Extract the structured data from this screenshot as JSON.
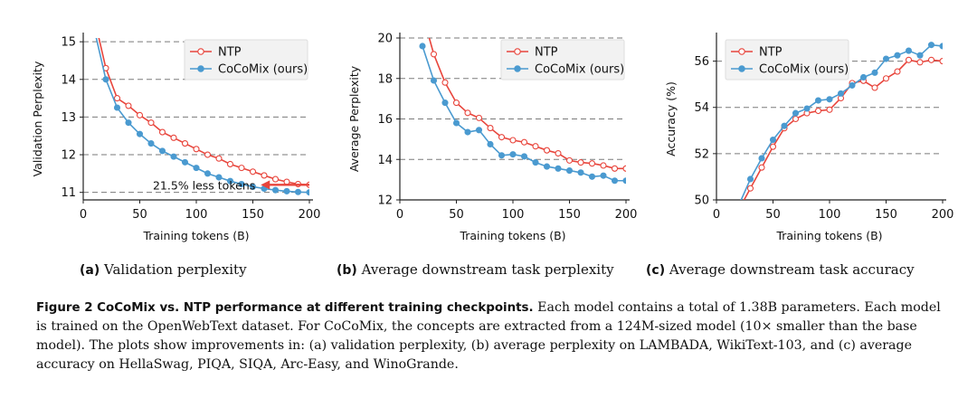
{
  "figure": {
    "sub_captions": [
      {
        "tag": "(a)",
        "text": "Validation perplexity"
      },
      {
        "tag": "(b)",
        "text": "Average downstream task perplexity"
      },
      {
        "tag": "(c)",
        "text": "Average downstream task accuracy"
      }
    ],
    "caption_lead": "Figure 2  CoCoMix vs. NTP performance at different training checkpoints.",
    "caption_body": "Each model contains a total of 1.38B parameters. Each model is trained on the OpenWebText dataset. For CoCoMix, the concepts are extracted from a 124M-sized model (10× smaller than the base model). The plots show improvements in: (a) validation perplexity, (b) average perplexity on LAMBADA, WikiText-103, and (c) average accuracy on HellaSwag, PIQA, SIQA, Arc-Easy, and WinoGrande."
  },
  "colors": {
    "ntp": "#e8453c",
    "cocomix": "#4a9ad0",
    "grid": "#7a7a7a",
    "annotation": "#e8453c"
  },
  "chart_data": [
    {
      "type": "line",
      "xlabel": "Training tokens (B)",
      "ylabel": "Validation Perplexity",
      "xlim": [
        0,
        200
      ],
      "ylim": [
        10.8,
        15.1
      ],
      "xticks": [
        0,
        50,
        100,
        150,
        200
      ],
      "yticks": [
        11,
        12,
        13,
        14,
        15
      ],
      "grid": "horizontal dashed",
      "legend": "top-right",
      "annotation": {
        "text": "21.5% less tokens",
        "arrow_from_x": 200,
        "arrow_to_x": 157,
        "y": 11.2
      },
      "series": [
        {
          "name": "NTP",
          "marker": "open-circle",
          "x": [
            10,
            20,
            30,
            40,
            50,
            60,
            70,
            80,
            90,
            100,
            110,
            120,
            130,
            140,
            150,
            160,
            170,
            180,
            190,
            200
          ],
          "y": [
            15.6,
            14.3,
            13.5,
            13.3,
            13.05,
            12.85,
            12.6,
            12.45,
            12.3,
            12.15,
            12.0,
            11.9,
            11.75,
            11.65,
            11.55,
            11.45,
            11.35,
            11.28,
            11.22,
            11.2
          ]
        },
        {
          "name": "CoCoMix (ours)",
          "marker": "filled-circle",
          "x": [
            10,
            20,
            30,
            40,
            50,
            60,
            70,
            80,
            90,
            100,
            110,
            120,
            130,
            140,
            150,
            160,
            170,
            180,
            190,
            200
          ],
          "y": [
            15.3,
            14.0,
            13.25,
            12.85,
            12.55,
            12.3,
            12.1,
            11.95,
            11.8,
            11.65,
            11.5,
            11.4,
            11.3,
            11.22,
            11.15,
            11.1,
            11.06,
            11.03,
            11.01,
            11.0
          ]
        }
      ]
    },
    {
      "type": "line",
      "xlabel": "Training tokens (B)",
      "ylabel": "Average Perplexity",
      "xlim": [
        0,
        200
      ],
      "ylim": [
        12,
        20
      ],
      "xticks": [
        0,
        50,
        100,
        150,
        200
      ],
      "yticks": [
        12,
        14,
        16,
        18,
        20
      ],
      "grid": "horizontal dashed",
      "legend": "top-right",
      "series": [
        {
          "name": "NTP",
          "marker": "open-circle",
          "x": [
            20,
            30,
            40,
            50,
            60,
            70,
            80,
            90,
            100,
            110,
            120,
            130,
            140,
            150,
            160,
            170,
            180,
            190,
            200
          ],
          "y": [
            21.2,
            19.2,
            17.8,
            16.8,
            16.3,
            16.05,
            15.55,
            15.1,
            14.95,
            14.85,
            14.65,
            14.45,
            14.3,
            13.95,
            13.85,
            13.8,
            13.7,
            13.55,
            13.55
          ]
        },
        {
          "name": "CoCoMix (ours)",
          "marker": "filled-circle",
          "x": [
            20,
            30,
            40,
            50,
            60,
            70,
            80,
            90,
            100,
            110,
            120,
            130,
            140,
            150,
            160,
            170,
            180,
            190,
            200
          ],
          "y": [
            19.6,
            17.9,
            16.8,
            15.8,
            15.35,
            15.45,
            14.75,
            14.2,
            14.25,
            14.15,
            13.85,
            13.65,
            13.55,
            13.45,
            13.35,
            13.15,
            13.2,
            12.95,
            12.95
          ]
        }
      ]
    },
    {
      "type": "line",
      "xlabel": "Training tokens (B)",
      "ylabel": "Accuracy (%)",
      "xlim": [
        0,
        200
      ],
      "ylim": [
        50,
        57
      ],
      "xticks": [
        0,
        50,
        100,
        150,
        200
      ],
      "yticks": [
        50,
        52,
        54,
        56
      ],
      "grid": "horizontal dashed",
      "legend": "top-left",
      "series": [
        {
          "name": "NTP",
          "marker": "open-circle",
          "x": [
            20,
            30,
            40,
            50,
            60,
            70,
            80,
            90,
            100,
            110,
            120,
            130,
            140,
            150,
            160,
            170,
            180,
            190,
            200
          ],
          "y": [
            49.6,
            50.5,
            51.4,
            52.3,
            53.1,
            53.5,
            53.75,
            53.85,
            53.9,
            54.4,
            55.05,
            55.15,
            54.85,
            55.25,
            55.55,
            56.05,
            55.95,
            56.05,
            56.0
          ]
        },
        {
          "name": "CoCoMix (ours)",
          "marker": "filled-circle",
          "x": [
            20,
            30,
            40,
            50,
            60,
            70,
            80,
            90,
            100,
            110,
            120,
            130,
            140,
            150,
            160,
            170,
            180,
            190,
            200
          ],
          "y": [
            49.8,
            50.9,
            51.8,
            52.6,
            53.2,
            53.75,
            53.95,
            54.3,
            54.35,
            54.6,
            54.95,
            55.3,
            55.5,
            56.1,
            56.25,
            56.45,
            56.25,
            56.7,
            56.65
          ]
        }
      ]
    }
  ]
}
